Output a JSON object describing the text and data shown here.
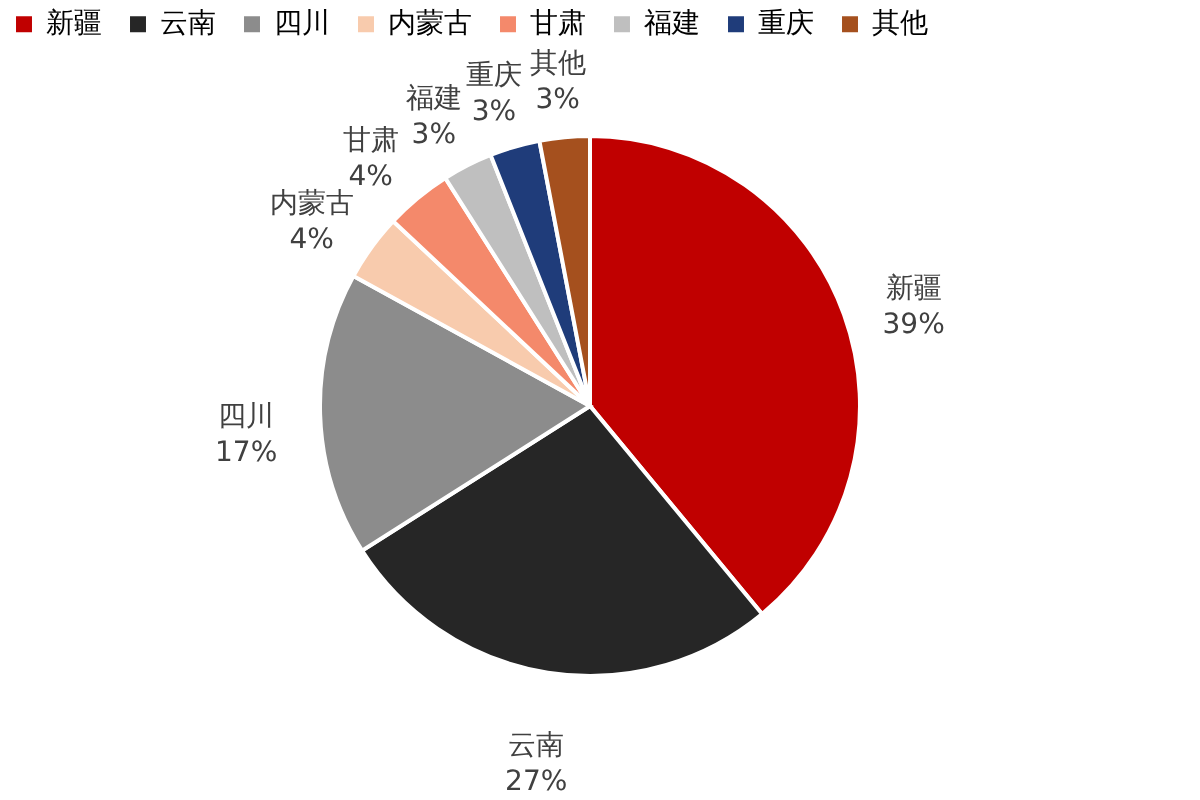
{
  "chart_data": {
    "type": "pie",
    "categories": [
      "新疆",
      "云南",
      "四川",
      "内蒙古",
      "甘肃",
      "福建",
      "重庆",
      "其他"
    ],
    "values": [
      39,
      27,
      17,
      4,
      4,
      3,
      3,
      3
    ],
    "value_labels": [
      "39%",
      "27%",
      "17%",
      "4%",
      "4%",
      "3%",
      "3%",
      "3%"
    ],
    "colors": [
      "#c00000",
      "#262626",
      "#8c8c8c",
      "#f8cbad",
      "#f4896b",
      "#bfbfbf",
      "#1f3c7a",
      "#a5501e"
    ],
    "legend": "top"
  }
}
